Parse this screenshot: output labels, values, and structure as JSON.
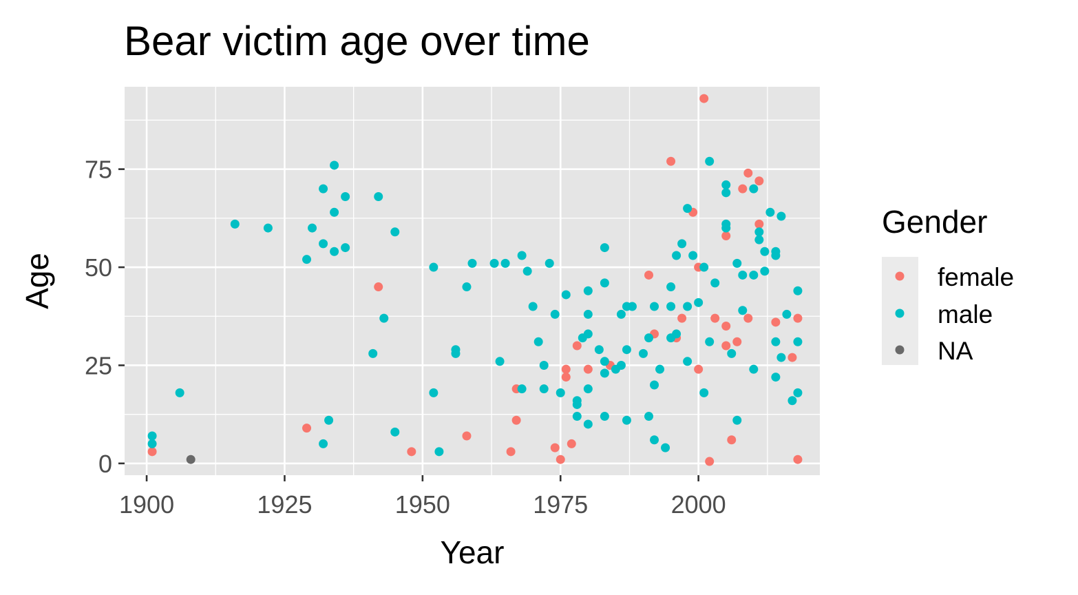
{
  "colors": {
    "panel_background": "#e5e5e5",
    "grid": "#ffffff",
    "tick_text": "#4d4d4d",
    "tick_mark": "#333333",
    "female": "#F8766D",
    "male": "#00BFC4",
    "NA": "#696969",
    "legend_key_background": "#ebebeb"
  },
  "chart_data": {
    "type": "scatter",
    "title": "Bear victim age over time",
    "xlabel": "Year",
    "ylabel": "Age",
    "xlim": [
      1896,
      2022
    ],
    "ylim": [
      -3,
      96
    ],
    "x_ticks": [
      1900,
      1925,
      1950,
      1975,
      2000
    ],
    "y_ticks": [
      0,
      25,
      50,
      75
    ],
    "grid": true,
    "legend": {
      "title": "Gender",
      "placement": "right",
      "entries": [
        "female",
        "male",
        "NA"
      ]
    },
    "series": [
      {
        "name": "female",
        "color": "#F8766D",
        "points": [
          [
            1901,
            3
          ],
          [
            1929,
            9
          ],
          [
            1942,
            45
          ],
          [
            1948,
            3
          ],
          [
            1958,
            7
          ],
          [
            1966,
            3
          ],
          [
            1967,
            19
          ],
          [
            1967,
            11
          ],
          [
            1974,
            4
          ],
          [
            1975,
            1
          ],
          [
            1976,
            24
          ],
          [
            1976,
            22
          ],
          [
            1977,
            5
          ],
          [
            1978,
            30
          ],
          [
            1980,
            24
          ],
          [
            1984,
            25
          ],
          [
            1991,
            48
          ],
          [
            1992,
            33
          ],
          [
            1995,
            77
          ],
          [
            1996,
            32
          ],
          [
            1997,
            37
          ],
          [
            1999,
            64
          ],
          [
            2000,
            50
          ],
          [
            2000,
            24
          ],
          [
            2001,
            93
          ],
          [
            2002,
            0.5
          ],
          [
            2003,
            37
          ],
          [
            2005,
            58
          ],
          [
            2005,
            35
          ],
          [
            2005,
            30
          ],
          [
            2006,
            6
          ],
          [
            2007,
            31
          ],
          [
            2008,
            70
          ],
          [
            2009,
            74
          ],
          [
            2009,
            37
          ],
          [
            2011,
            72
          ],
          [
            2011,
            61
          ],
          [
            2014,
            36
          ],
          [
            2017,
            27
          ],
          [
            2018,
            37
          ],
          [
            2018,
            1
          ]
        ]
      },
      {
        "name": "male",
        "color": "#00BFC4",
        "points": [
          [
            1901,
            7
          ],
          [
            1901,
            5
          ],
          [
            1906,
            18
          ],
          [
            1916,
            61
          ],
          [
            1922,
            60
          ],
          [
            1929,
            52
          ],
          [
            1930,
            60
          ],
          [
            1932,
            70
          ],
          [
            1932,
            56
          ],
          [
            1932,
            5
          ],
          [
            1933,
            11
          ],
          [
            1934,
            76
          ],
          [
            1934,
            64
          ],
          [
            1934,
            54
          ],
          [
            1936,
            68
          ],
          [
            1936,
            55
          ],
          [
            1941,
            28
          ],
          [
            1942,
            68
          ],
          [
            1943,
            37
          ],
          [
            1945,
            59
          ],
          [
            1945,
            8
          ],
          [
            1952,
            50
          ],
          [
            1952,
            18
          ],
          [
            1953,
            3
          ],
          [
            1956,
            29
          ],
          [
            1956,
            28
          ],
          [
            1958,
            45
          ],
          [
            1959,
            51
          ],
          [
            1963,
            51
          ],
          [
            1964,
            26
          ],
          [
            1965,
            51
          ],
          [
            1968,
            53
          ],
          [
            1968,
            19
          ],
          [
            1969,
            49
          ],
          [
            1970,
            40
          ],
          [
            1971,
            31
          ],
          [
            1972,
            25
          ],
          [
            1972,
            19
          ],
          [
            1973,
            51
          ],
          [
            1974,
            38
          ],
          [
            1975,
            18
          ],
          [
            1976,
            43
          ],
          [
            1978,
            16
          ],
          [
            1978,
            15
          ],
          [
            1978,
            12
          ],
          [
            1979,
            32
          ],
          [
            1980,
            44
          ],
          [
            1980,
            38
          ],
          [
            1980,
            33
          ],
          [
            1980,
            19
          ],
          [
            1980,
            10
          ],
          [
            1982,
            29
          ],
          [
            1983,
            55
          ],
          [
            1983,
            46
          ],
          [
            1983,
            26
          ],
          [
            1983,
            23
          ],
          [
            1983,
            12
          ],
          [
            1985,
            24
          ],
          [
            1986,
            38
          ],
          [
            1986,
            25
          ],
          [
            1987,
            40
          ],
          [
            1987,
            29
          ],
          [
            1987,
            11
          ],
          [
            1988,
            40
          ],
          [
            1990,
            28
          ],
          [
            1991,
            32
          ],
          [
            1991,
            12
          ],
          [
            1992,
            40
          ],
          [
            1992,
            20
          ],
          [
            1992,
            6
          ],
          [
            1993,
            24
          ],
          [
            1994,
            4
          ],
          [
            1995,
            45
          ],
          [
            1995,
            40
          ],
          [
            1995,
            32
          ],
          [
            1996,
            53
          ],
          [
            1996,
            33
          ],
          [
            1997,
            56
          ],
          [
            1998,
            65
          ],
          [
            1998,
            40
          ],
          [
            1998,
            26
          ],
          [
            1999,
            53
          ],
          [
            2000,
            41
          ],
          [
            2001,
            50
          ],
          [
            2001,
            18
          ],
          [
            2002,
            77
          ],
          [
            2002,
            31
          ],
          [
            2003,
            46
          ],
          [
            2005,
            71
          ],
          [
            2005,
            69
          ],
          [
            2005,
            61
          ],
          [
            2005,
            60
          ],
          [
            2006,
            28
          ],
          [
            2007,
            51
          ],
          [
            2007,
            11
          ],
          [
            2008,
            48
          ],
          [
            2008,
            39
          ],
          [
            2010,
            70
          ],
          [
            2010,
            48
          ],
          [
            2010,
            24
          ],
          [
            2011,
            59
          ],
          [
            2011,
            57
          ],
          [
            2012,
            54
          ],
          [
            2012,
            49
          ],
          [
            2013,
            64
          ],
          [
            2014,
            54
          ],
          [
            2014,
            53
          ],
          [
            2014,
            31
          ],
          [
            2014,
            22
          ],
          [
            2015,
            63
          ],
          [
            2015,
            27
          ],
          [
            2016,
            38
          ],
          [
            2017,
            16
          ],
          [
            2018,
            44
          ],
          [
            2018,
            31
          ],
          [
            2018,
            18
          ]
        ]
      },
      {
        "name": "NA",
        "color": "#696969",
        "points": [
          [
            1908,
            1
          ]
        ]
      }
    ]
  }
}
